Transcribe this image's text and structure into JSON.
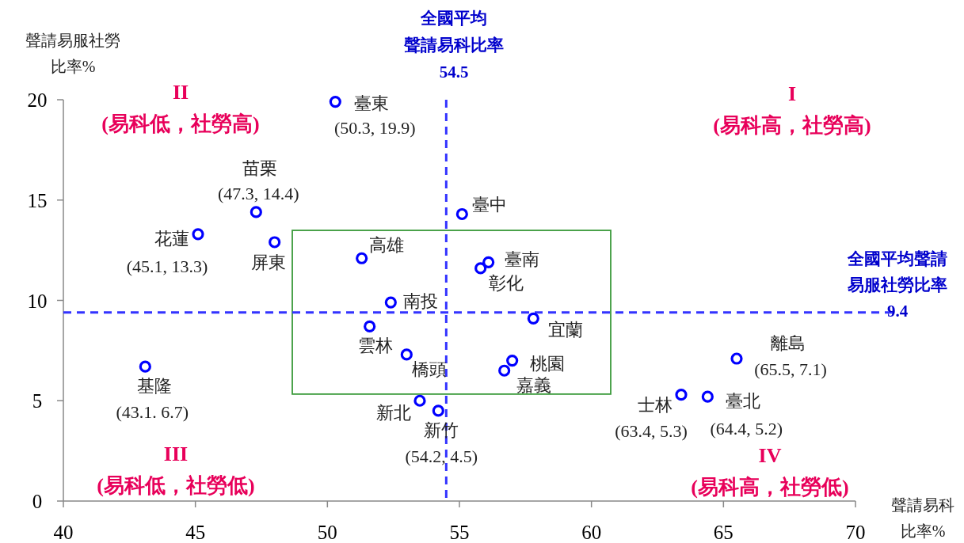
{
  "chart_data": {
    "type": "scatter",
    "xlabel": "聲請易科比率%",
    "ylabel": "聲請易服社勞比率%",
    "xlim": [
      40,
      70
    ],
    "xticks": [
      40,
      45,
      50,
      55,
      60,
      65,
      70
    ],
    "ylim": [
      0,
      20
    ],
    "yticks": [
      0,
      5,
      10,
      15,
      20
    ],
    "grid": false,
    "marker": "circle",
    "series": [
      {
        "color": "#0000ff",
        "x": [
          50.3,
          47.3,
          45.1,
          48.0,
          51.3,
          55.1,
          56.1,
          55.8,
          52.4,
          57.8,
          51.6,
          53.0,
          57.0,
          56.7,
          43.1,
          53.5,
          54.2,
          65.5,
          63.4,
          64.4
        ],
        "values": [
          19.9,
          14.4,
          13.3,
          12.9,
          12.1,
          14.3,
          11.9,
          11.6,
          9.9,
          9.1,
          8.7,
          7.3,
          7.0,
          6.5,
          6.7,
          5.0,
          4.5,
          7.1,
          5.3,
          5.2
        ]
      }
    ],
    "ref_lines": [
      {
        "axis": "x",
        "value": 54.5,
        "label": "全國平均聲請易科比率54.5",
        "color": "#3333ff",
        "line_style": "dashed"
      },
      {
        "axis": "y",
        "value": 9.4,
        "label": "全國平均聲請易服社勞比率9.4",
        "color": "#3333ff",
        "line_style": "dashed"
      }
    ],
    "annotations": [
      {
        "text": "臺東",
        "x": 50.3,
        "y": 19.9
      },
      {
        "text": "(50.3,  19.9)",
        "x": 50.3,
        "y": 19.9
      },
      {
        "text": "苗栗",
        "x": 47.3,
        "y": 14.4
      },
      {
        "text": "(47.3,  14.4)",
        "x": 47.3,
        "y": 14.4
      },
      {
        "text": "花蓮",
        "x": 45.1,
        "y": 13.3
      },
      {
        "text": "(45.1,  13.3)",
        "x": 45.1,
        "y": 13.3
      },
      {
        "text": "屏東",
        "x": 48.0,
        "y": 12.9
      },
      {
        "text": "高雄",
        "x": 51.3,
        "y": 12.1
      },
      {
        "text": "臺中",
        "x": 55.1,
        "y": 14.3
      },
      {
        "text": "臺南",
        "x": 56.1,
        "y": 11.9
      },
      {
        "text": "彰化",
        "x": 55.8,
        "y": 11.6
      },
      {
        "text": "南投",
        "x": 52.4,
        "y": 9.9
      },
      {
        "text": "宜蘭",
        "x": 57.8,
        "y": 9.1
      },
      {
        "text": "雲林",
        "x": 51.6,
        "y": 8.7
      },
      {
        "text": "橋頭",
        "x": 53.0,
        "y": 7.3
      },
      {
        "text": "桃園",
        "x": 57.0,
        "y": 7.0
      },
      {
        "text": "嘉義",
        "x": 56.7,
        "y": 6.5
      },
      {
        "text": "基隆",
        "x": 43.1,
        "y": 6.7
      },
      {
        "text": "(43.1.  6.7)",
        "x": 43.1,
        "y": 6.7
      },
      {
        "text": "新北",
        "x": 53.5,
        "y": 5.0
      },
      {
        "text": "新竹",
        "x": 54.2,
        "y": 4.5
      },
      {
        "text": "(54.2,  4.5)",
        "x": 54.2,
        "y": 4.5
      },
      {
        "text": "離島",
        "x": 65.5,
        "y": 7.1
      },
      {
        "text": "(65.5,  7.1)",
        "x": 65.5,
        "y": 7.1
      },
      {
        "text": "士林",
        "x": 63.4,
        "y": 5.3
      },
      {
        "text": "(63.4,  5.3)",
        "x": 63.4,
        "y": 5.3
      },
      {
        "text": "臺北",
        "x": 64.4,
        "y": 5.2
      },
      {
        "text": "(64.4,  5.2)",
        "x": 64.4,
        "y": 5.2
      },
      "II\n(易科低，社勞高)",
      "I\n(易科高，社勞高)",
      "III\n(易科低，社勞低)",
      "IV\n(易科高，社勞低)"
    ]
  }
}
